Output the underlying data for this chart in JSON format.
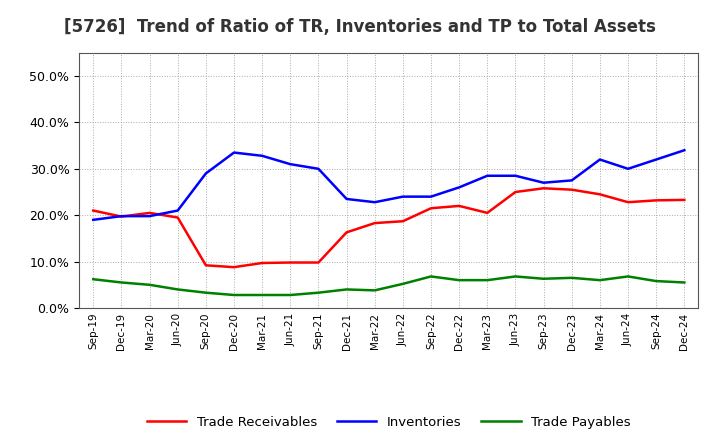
{
  "title": "[5726]  Trend of Ratio of TR, Inventories and TP to Total Assets",
  "x_labels": [
    "Sep-19",
    "Dec-19",
    "Mar-20",
    "Jun-20",
    "Sep-20",
    "Dec-20",
    "Mar-21",
    "Jun-21",
    "Sep-21",
    "Dec-21",
    "Mar-22",
    "Jun-22",
    "Sep-22",
    "Dec-22",
    "Mar-23",
    "Jun-23",
    "Sep-23",
    "Dec-23",
    "Mar-24",
    "Jun-24",
    "Sep-24",
    "Dec-24"
  ],
  "trade_receivables": [
    0.21,
    0.197,
    0.205,
    0.195,
    0.092,
    0.088,
    0.097,
    0.098,
    0.098,
    0.163,
    0.183,
    0.187,
    0.215,
    0.22,
    0.205,
    0.25,
    0.258,
    0.255,
    0.245,
    0.228,
    0.232,
    0.233
  ],
  "inventories": [
    0.19,
    0.198,
    0.198,
    0.21,
    0.29,
    0.335,
    0.328,
    0.31,
    0.3,
    0.235,
    0.228,
    0.24,
    0.24,
    0.26,
    0.285,
    0.285,
    0.27,
    0.275,
    0.32,
    0.3,
    0.32,
    0.34
  ],
  "trade_payables": [
    0.062,
    0.055,
    0.05,
    0.04,
    0.033,
    0.028,
    0.028,
    0.028,
    0.033,
    0.04,
    0.038,
    0.052,
    0.068,
    0.06,
    0.06,
    0.068,
    0.063,
    0.065,
    0.06,
    0.068,
    0.058,
    0.055
  ],
  "tr_color": "#FF0000",
  "inv_color": "#0000FF",
  "tp_color": "#008000",
  "ylim": [
    0.0,
    0.55
  ],
  "yticks": [
    0.0,
    0.1,
    0.2,
    0.3,
    0.4,
    0.5
  ],
  "bg_color": "#FFFFFF",
  "plot_bg_color": "#FFFFFF",
  "grid_color": "#AAAAAA",
  "title_fontsize": 12,
  "legend_labels": [
    "Trade Receivables",
    "Inventories",
    "Trade Payables"
  ],
  "linewidth": 1.8
}
